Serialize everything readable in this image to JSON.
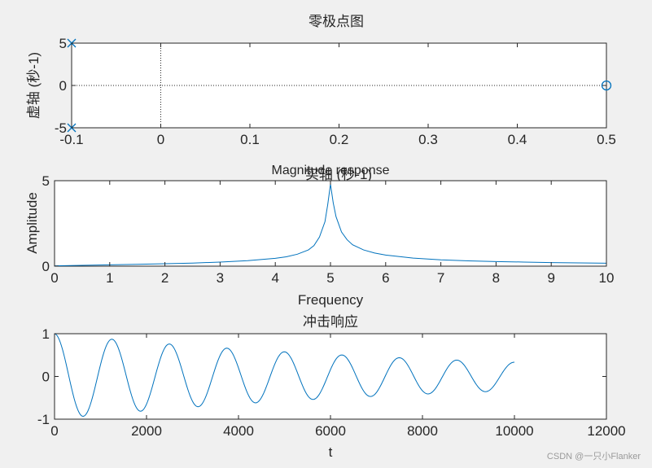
{
  "colors": {
    "series": "#0072bd",
    "axes": "#262626",
    "background": "#f0f0f0",
    "plot_bg": "#ffffff"
  },
  "watermark": "CSDN @一只小Flanker",
  "chart_data": [
    {
      "id": "pz",
      "type": "scatter",
      "title": "零极点图",
      "xlabel": "实轴 (秒-1)",
      "ylabel": "虚轴 (秒-1)",
      "xlim": [
        -0.1,
        0.5
      ],
      "ylim": [
        -5,
        5
      ],
      "xticks": [
        -0.1,
        0,
        0.1,
        0.2,
        0.3,
        0.4,
        0.5
      ],
      "xtick_labels": [
        "-0.1",
        "0",
        "0.1",
        "0.2",
        "0.3",
        "0.4",
        "0.5"
      ],
      "yticks": [
        -5,
        0,
        5
      ],
      "ytick_labels": [
        "-5",
        "0",
        "5"
      ],
      "poles": [
        {
          "x": -0.1,
          "y": 5
        },
        {
          "x": -0.1,
          "y": -5
        }
      ],
      "zeros": [
        {
          "x": 0.5,
          "y": 0
        }
      ],
      "ref_lines": {
        "x0": 0,
        "y0": 0
      },
      "grid": false
    },
    {
      "id": "mag",
      "type": "line",
      "title": "Magnitude response",
      "xlabel": "Frequency",
      "ylabel": "Amplitude",
      "xlim": [
        0,
        10
      ],
      "ylim": [
        0,
        5
      ],
      "xticks": [
        0,
        1,
        2,
        3,
        4,
        5,
        6,
        7,
        8,
        9,
        10
      ],
      "xtick_labels": [
        "0",
        "1",
        "2",
        "3",
        "4",
        "5",
        "6",
        "7",
        "8",
        "9",
        "10"
      ],
      "yticks": [
        0,
        5
      ],
      "ytick_labels": [
        "0",
        "5"
      ],
      "series": [
        {
          "x": [
            0,
            0.5,
            1,
            1.5,
            2,
            2.5,
            3,
            3.5,
            4,
            4.2,
            4.4,
            4.6,
            4.7,
            4.8,
            4.9,
            4.95,
            5,
            5.05,
            5.1,
            5.2,
            5.3,
            5.4,
            5.6,
            5.8,
            6,
            6.5,
            7,
            7.5,
            8,
            8.5,
            9,
            9.5,
            10
          ],
          "y": [
            0.02,
            0.05,
            0.08,
            0.11,
            0.14,
            0.18,
            0.24,
            0.32,
            0.46,
            0.55,
            0.7,
            0.95,
            1.2,
            1.7,
            2.6,
            3.6,
            4.8,
            3.7,
            2.9,
            2.0,
            1.55,
            1.25,
            0.95,
            0.77,
            0.65,
            0.47,
            0.37,
            0.31,
            0.27,
            0.24,
            0.21,
            0.19,
            0.17
          ]
        }
      ],
      "grid": false
    },
    {
      "id": "imp",
      "type": "line",
      "title": "冲击响应",
      "xlabel": "t",
      "ylabel": "",
      "xlim": [
        0,
        12000
      ],
      "ylim": [
        -1,
        1
      ],
      "xticks": [
        0,
        2000,
        4000,
        6000,
        8000,
        10000,
        12000
      ],
      "xtick_labels": [
        "0",
        "2000",
        "4000",
        "6000",
        "8000",
        "10000",
        "12000"
      ],
      "yticks": [
        -1,
        0,
        1
      ],
      "ytick_labels": [
        "-1",
        "0",
        "1"
      ],
      "series": [
        {
          "x_range": [
            0,
            10000
          ],
          "period": 1250,
          "decay_per_sample": 0.00011,
          "amplitude": 1
        }
      ],
      "grid": false
    }
  ]
}
